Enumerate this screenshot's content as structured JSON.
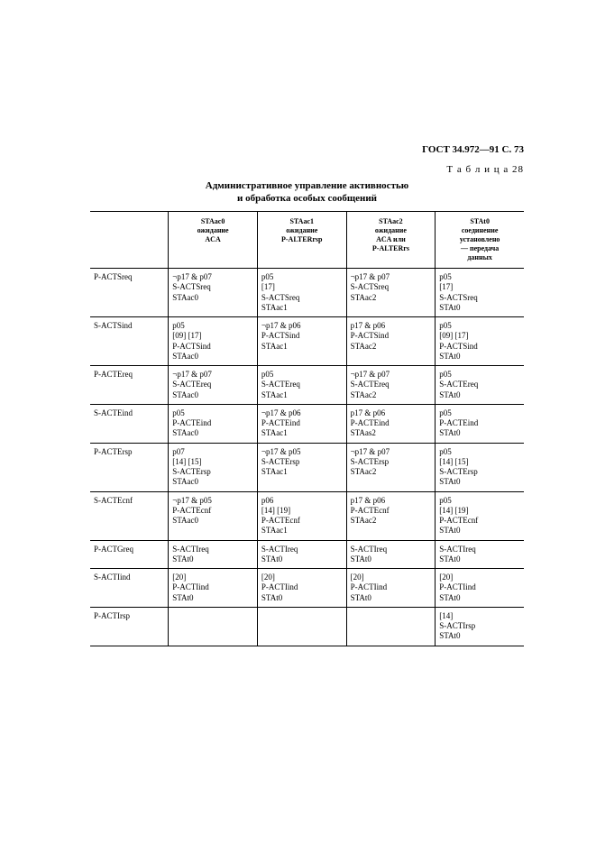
{
  "header": "ГОСТ 34.972—91 С. 73",
  "tableLabel": "Т а б л и ц а   28",
  "title": "Административное управление активностью",
  "subtitle": "и обработка особых сообщений",
  "columns": {
    "c0": "",
    "c1": "STAac0\nожидание\nACA",
    "c2": "STAac1\nожидание\nP-ALTERrsp",
    "c3": "STAac2\nожидание\nACA или\nP-ALTERrs",
    "c4": "STAt0\nсоединение\nустановлено\n— передача\nданных"
  },
  "rows": [
    {
      "label": "P-ACTSreq",
      "c1": "¬p17 & p07\nS-ACTSreq\nSTAac0",
      "c2": "p05\n[17]\nS-ACTSreq\nSTAac1",
      "c3": "¬p17 & p07\nS-ACTSreq\nSTAac2",
      "c4": "p05\n[17]\nS-ACTSreq\nSTAt0"
    },
    {
      "label": "S-ACTSind",
      "c1": "p05\n[09] [17]\nP-ACTSind\nSTAac0",
      "c2": "¬p17 & p06\nP-ACTSind\nSTAac1",
      "c3": "p17 & p06\nP-ACTSind\nSTAac2",
      "c4": "p05\n[09] [17]\nP-ACTSind\nSTAt0"
    },
    {
      "label": "P-ACTEreq",
      "c1": "¬p17 & p07\nS-ACTEreq\nSTAac0",
      "c2": "p05\nS-ACTEreq\nSTAac1",
      "c3": "¬p17 & p07\nS-ACTEreq\nSTAac2",
      "c4": "p05\nS-ACTEreq\nSTAt0"
    },
    {
      "label": "S-ACTEind",
      "c1": "p05\nP-ACTEind\nSTAac0",
      "c2": "¬p17 & p06\nP-ACTEind\nSTAac1",
      "c3": "p17 & p06\nP-ACTEind\nSTAas2",
      "c4": "p05\nP-ACTEind\nSTAt0"
    },
    {
      "label": "P-ACTErsp",
      "c1": "p07\n[14] [15]\nS-ACTErsp\nSTAac0",
      "c2": "¬p17 & p05\nS-ACTErsp\nSTAac1",
      "c3": "¬p17 & p07\nS-ACTErsp\nSTAac2",
      "c4": "p05\n[14] [15]\nS-ACTErsp\nSTAt0"
    },
    {
      "label": "S-ACTEcnf",
      "c1": "¬p17 & p05\nP-ACTEcnf\nSTAac0",
      "c2": "p06\n[14] [19]\nP-ACTEcnf\nSTAac1",
      "c3": "p17 & p06\nP-ACTEcnf\nSTAac2",
      "c4": "p05\n[14] [19]\nP-ACTEcnf\nSTAt0"
    },
    {
      "label": "P-ACTGreq",
      "c1": "S-ACTIreq\nSTAt0",
      "c2": "S-ACTIreq\nSTAt0",
      "c3": "S-ACTIreq\nSTAt0",
      "c4": "S-ACTIreq\nSTAt0"
    },
    {
      "label": "S-ACTIind",
      "c1": "[20]\nP-ACTIind\nSTAt0",
      "c2": "[20]\nP-ACTIind\nSTAt0",
      "c3": "[20]\nP-ACTIind\nSTAt0",
      "c4": "[20]\nP-ACTIind\nSTAt0"
    },
    {
      "label": "P-ACTIrsp",
      "c1": "",
      "c2": "",
      "c3": "",
      "c4": "[14]\nS-ACTIrsp\nSTAt0"
    }
  ]
}
